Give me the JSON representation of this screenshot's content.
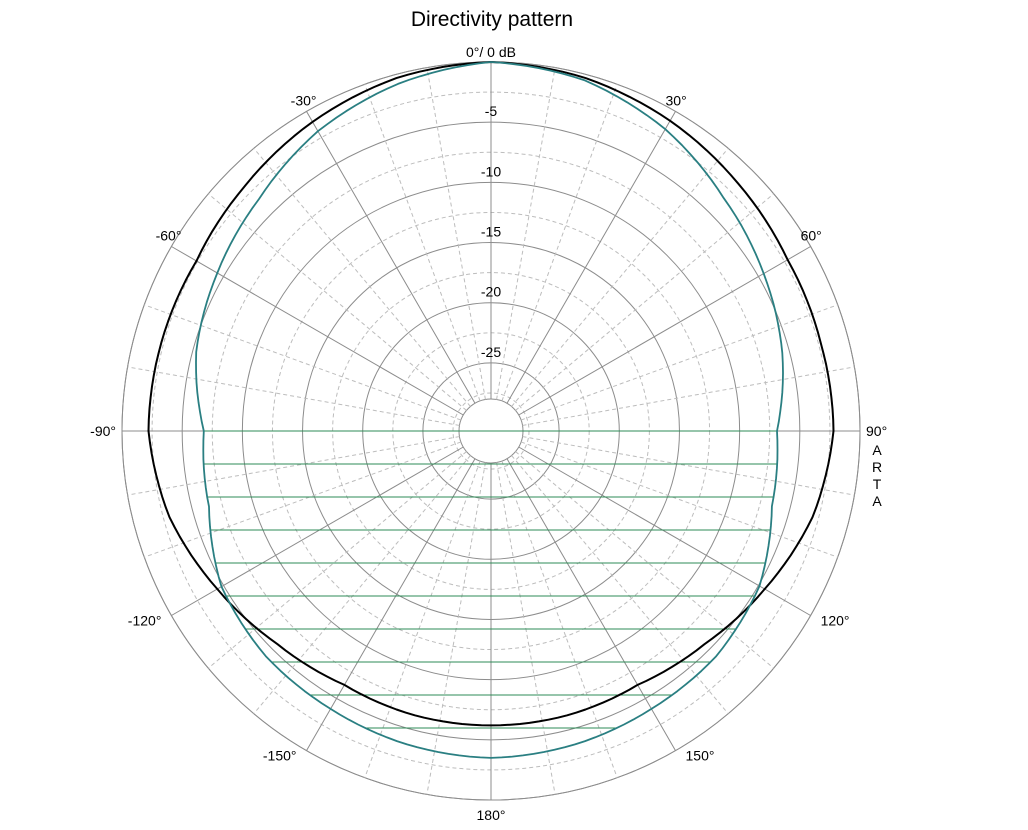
{
  "chart_data": {
    "type": "polar",
    "title": "Directivity pattern",
    "watermark": "ARTA",
    "radial_unit": "dB",
    "radial_ticks": [
      0,
      -5,
      -10,
      -15,
      -20,
      -25
    ],
    "radial_labels": [
      "0°/ 0 dB",
      "-5",
      "-10",
      "-15",
      "-20",
      "-25"
    ],
    "rlim": [
      -28,
      0
    ],
    "angle_ticks": [
      0,
      30,
      60,
      90,
      120,
      150,
      180,
      -150,
      -120,
      -90,
      -60,
      -30
    ],
    "angle_labels": [
      "",
      "30°",
      "60°",
      "90°",
      "120°",
      "150°",
      "180°",
      "-150°",
      "-120°",
      "-90°",
      "-60°",
      "-30°"
    ],
    "grid": true,
    "series": [
      {
        "color": "#000000",
        "angles": [
          0,
          15,
          30,
          45,
          60,
          75,
          90,
          105,
          120,
          135,
          150,
          165,
          180,
          -165,
          -150,
          -135,
          -120,
          -105,
          -90,
          -75,
          -60,
          -45,
          -30,
          -15
        ],
        "values": [
          0.0,
          -0.3,
          -0.9,
          -1.6,
          -2.2,
          -2.3,
          -2.2,
          -3.0,
          -4.4,
          -5.6,
          -6.3,
          -6.2,
          -6.2,
          -6.2,
          -6.3,
          -5.6,
          -4.4,
          -3.0,
          -2.2,
          -2.3,
          -2.4,
          -1.8,
          -1.0,
          -0.3
        ]
      },
      {
        "color": "#2a7f82",
        "angles": [
          0,
          15,
          30,
          45,
          60,
          75,
          90,
          105,
          120,
          135,
          150,
          165,
          180,
          -165,
          -150,
          -135,
          -120,
          -105,
          -90,
          -75,
          -60,
          -45,
          -30,
          -15
        ],
        "values": [
          0.0,
          -0.5,
          -1.7,
          -3.3,
          -4.5,
          -5.6,
          -6.9,
          -6.5,
          -4.9,
          -4.2,
          -4.0,
          -3.7,
          -3.5,
          -3.7,
          -4.0,
          -4.2,
          -4.8,
          -6.4,
          -6.8,
          -5.3,
          -4.4,
          -3.4,
          -1.9,
          -0.8
        ]
      }
    ],
    "fill_color": "#2e8b57"
  }
}
